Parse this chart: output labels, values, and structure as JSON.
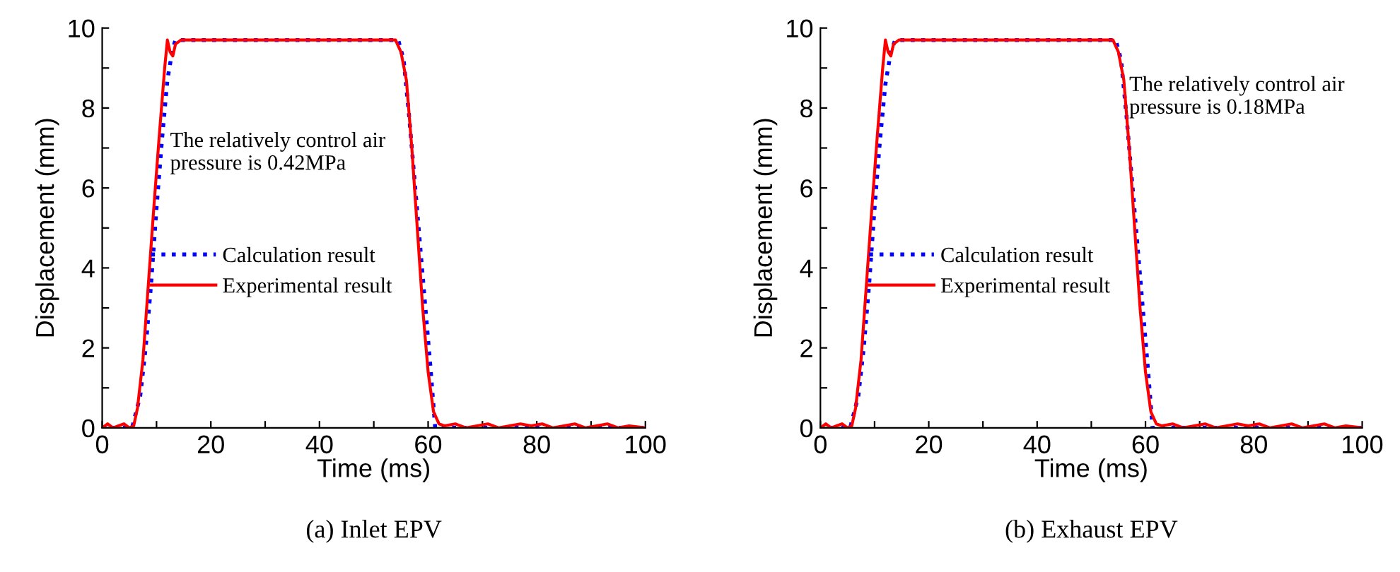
{
  "chart_data": [
    {
      "type": "line",
      "xlabel": "Time (ms)",
      "ylabel": "Displacement (mm)",
      "xlim": [
        0,
        100
      ],
      "ylim": [
        0,
        10
      ],
      "xticks": [
        0,
        {
          "value": 10,
          "label": null
        },
        20,
        {
          "value": 30,
          "label": null
        },
        40,
        {
          "value": 50,
          "label": null
        },
        60,
        {
          "value": 70,
          "label": null
        },
        80,
        {
          "value": 90,
          "label": null
        },
        100
      ],
      "yticks": [
        0,
        {
          "value": 1,
          "label": null
        },
        2,
        {
          "value": 3,
          "label": null
        },
        4,
        {
          "value": 5,
          "label": null
        },
        6,
        {
          "value": 7,
          "label": null
        },
        8,
        {
          "value": 9,
          "label": null
        },
        10
      ],
      "grid": false,
      "legend": "left",
      "marker": "none",
      "series": [
        {
          "name": "Calculation result",
          "color": "#0000ff",
          "line_style": "dotted",
          "x": [
            0,
            5.5,
            7,
            8,
            9,
            10,
            11,
            12,
            13,
            13.5,
            54.5,
            55.5,
            56.5,
            57.5,
            58.5,
            59.5,
            60.5,
            61.3,
            62,
            100
          ],
          "values": [
            0,
            0,
            0.8,
            2,
            3.6,
            5.5,
            7.2,
            8.7,
            9.5,
            9.7,
            9.7,
            9.2,
            7.8,
            6.2,
            4.6,
            3,
            1.4,
            0,
            0,
            0
          ]
        },
        {
          "name": "Experimental result",
          "color": "#ff0000",
          "line_style": "solid",
          "x": [
            0,
            1,
            2,
            3,
            4,
            5,
            5.8,
            6.5,
            7.5,
            8.5,
            9.5,
            10.5,
            11.5,
            12,
            12.5,
            13,
            13.5,
            14.5,
            54,
            55,
            56,
            57,
            58,
            59,
            60,
            61,
            62,
            63,
            65,
            67,
            69,
            71,
            73,
            75,
            77,
            79,
            81,
            83,
            85,
            87,
            89,
            91,
            93,
            95,
            97,
            100
          ],
          "values": [
            0,
            0.1,
            0,
            0.05,
            0.1,
            0,
            0.05,
            0.5,
            1.7,
            3.6,
            5.5,
            7.3,
            9,
            9.7,
            9.4,
            9.3,
            9.6,
            9.7,
            9.7,
            9.4,
            8.7,
            7,
            5,
            3,
            1.4,
            0.4,
            0.1,
            0.05,
            0.1,
            0,
            0.05,
            0.1,
            0,
            0.05,
            0.1,
            0.05,
            0.1,
            0,
            0.05,
            0.1,
            0,
            0.05,
            0.1,
            0,
            0.05,
            0
          ]
        }
      ],
      "annotations": [
        "The relatively control air\npressure is 0.42MPa",
        "(a) Inlet EPV"
      ]
    },
    {
      "type": "line",
      "xlabel": "Time (ms)",
      "ylabel": "Displacement (mm)",
      "xlim": [
        0,
        100
      ],
      "ylim": [
        0,
        10
      ],
      "xticks": [
        0,
        {
          "value": 10,
          "label": null
        },
        20,
        {
          "value": 30,
          "label": null
        },
        40,
        {
          "value": 50,
          "label": null
        },
        60,
        {
          "value": 70,
          "label": null
        },
        80,
        {
          "value": 90,
          "label": null
        },
        100
      ],
      "yticks": [
        0,
        {
          "value": 1,
          "label": null
        },
        2,
        {
          "value": 3,
          "label": null
        },
        4,
        {
          "value": 5,
          "label": null
        },
        6,
        {
          "value": 7,
          "label": null
        },
        8,
        {
          "value": 9,
          "label": null
        },
        10
      ],
      "grid": false,
      "legend": "left",
      "marker": "none",
      "series": [
        {
          "name": "Calculation result",
          "color": "#0000ff",
          "line_style": "dotted",
          "x": [
            0,
            5.5,
            7,
            8,
            9,
            10,
            11,
            12,
            13,
            13.8,
            54.5,
            55.5,
            56.5,
            57.5,
            58.5,
            59.5,
            60.5,
            61.3,
            62,
            100
          ],
          "values": [
            0,
            0,
            0.8,
            2,
            3.6,
            5.5,
            7.2,
            8.6,
            9.4,
            9.7,
            9.7,
            9.2,
            7.8,
            6.2,
            4.6,
            3,
            1.4,
            0,
            0,
            0
          ]
        },
        {
          "name": "Experimental result",
          "color": "#ff0000",
          "line_style": "solid",
          "x": [
            0,
            1,
            2,
            3,
            4,
            5,
            5.8,
            6.5,
            7.5,
            8.5,
            9.5,
            10.5,
            11.5,
            12,
            12.5,
            13,
            13.5,
            14.5,
            54,
            55,
            56,
            57,
            58,
            59,
            60,
            61,
            62,
            63,
            65,
            67,
            69,
            71,
            73,
            75,
            77,
            79,
            81,
            83,
            85,
            87,
            89,
            91,
            93,
            95,
            97,
            100
          ],
          "values": [
            0,
            0.1,
            0,
            0.05,
            0.1,
            0,
            0.05,
            0.5,
            1.7,
            3.6,
            5.5,
            7.3,
            9,
            9.7,
            9.4,
            9.3,
            9.6,
            9.7,
            9.7,
            9.4,
            8.7,
            7,
            5,
            3,
            1.4,
            0.4,
            0.1,
            0.05,
            0.1,
            0,
            0.05,
            0.1,
            0,
            0.05,
            0.1,
            0.05,
            0.1,
            0,
            0.05,
            0.1,
            0,
            0.05,
            0.1,
            0,
            0.05,
            0
          ]
        }
      ],
      "annotations": [
        "The relatively control air\npressure is 0.18MPa",
        "(b) Exhaust EPV"
      ]
    }
  ]
}
